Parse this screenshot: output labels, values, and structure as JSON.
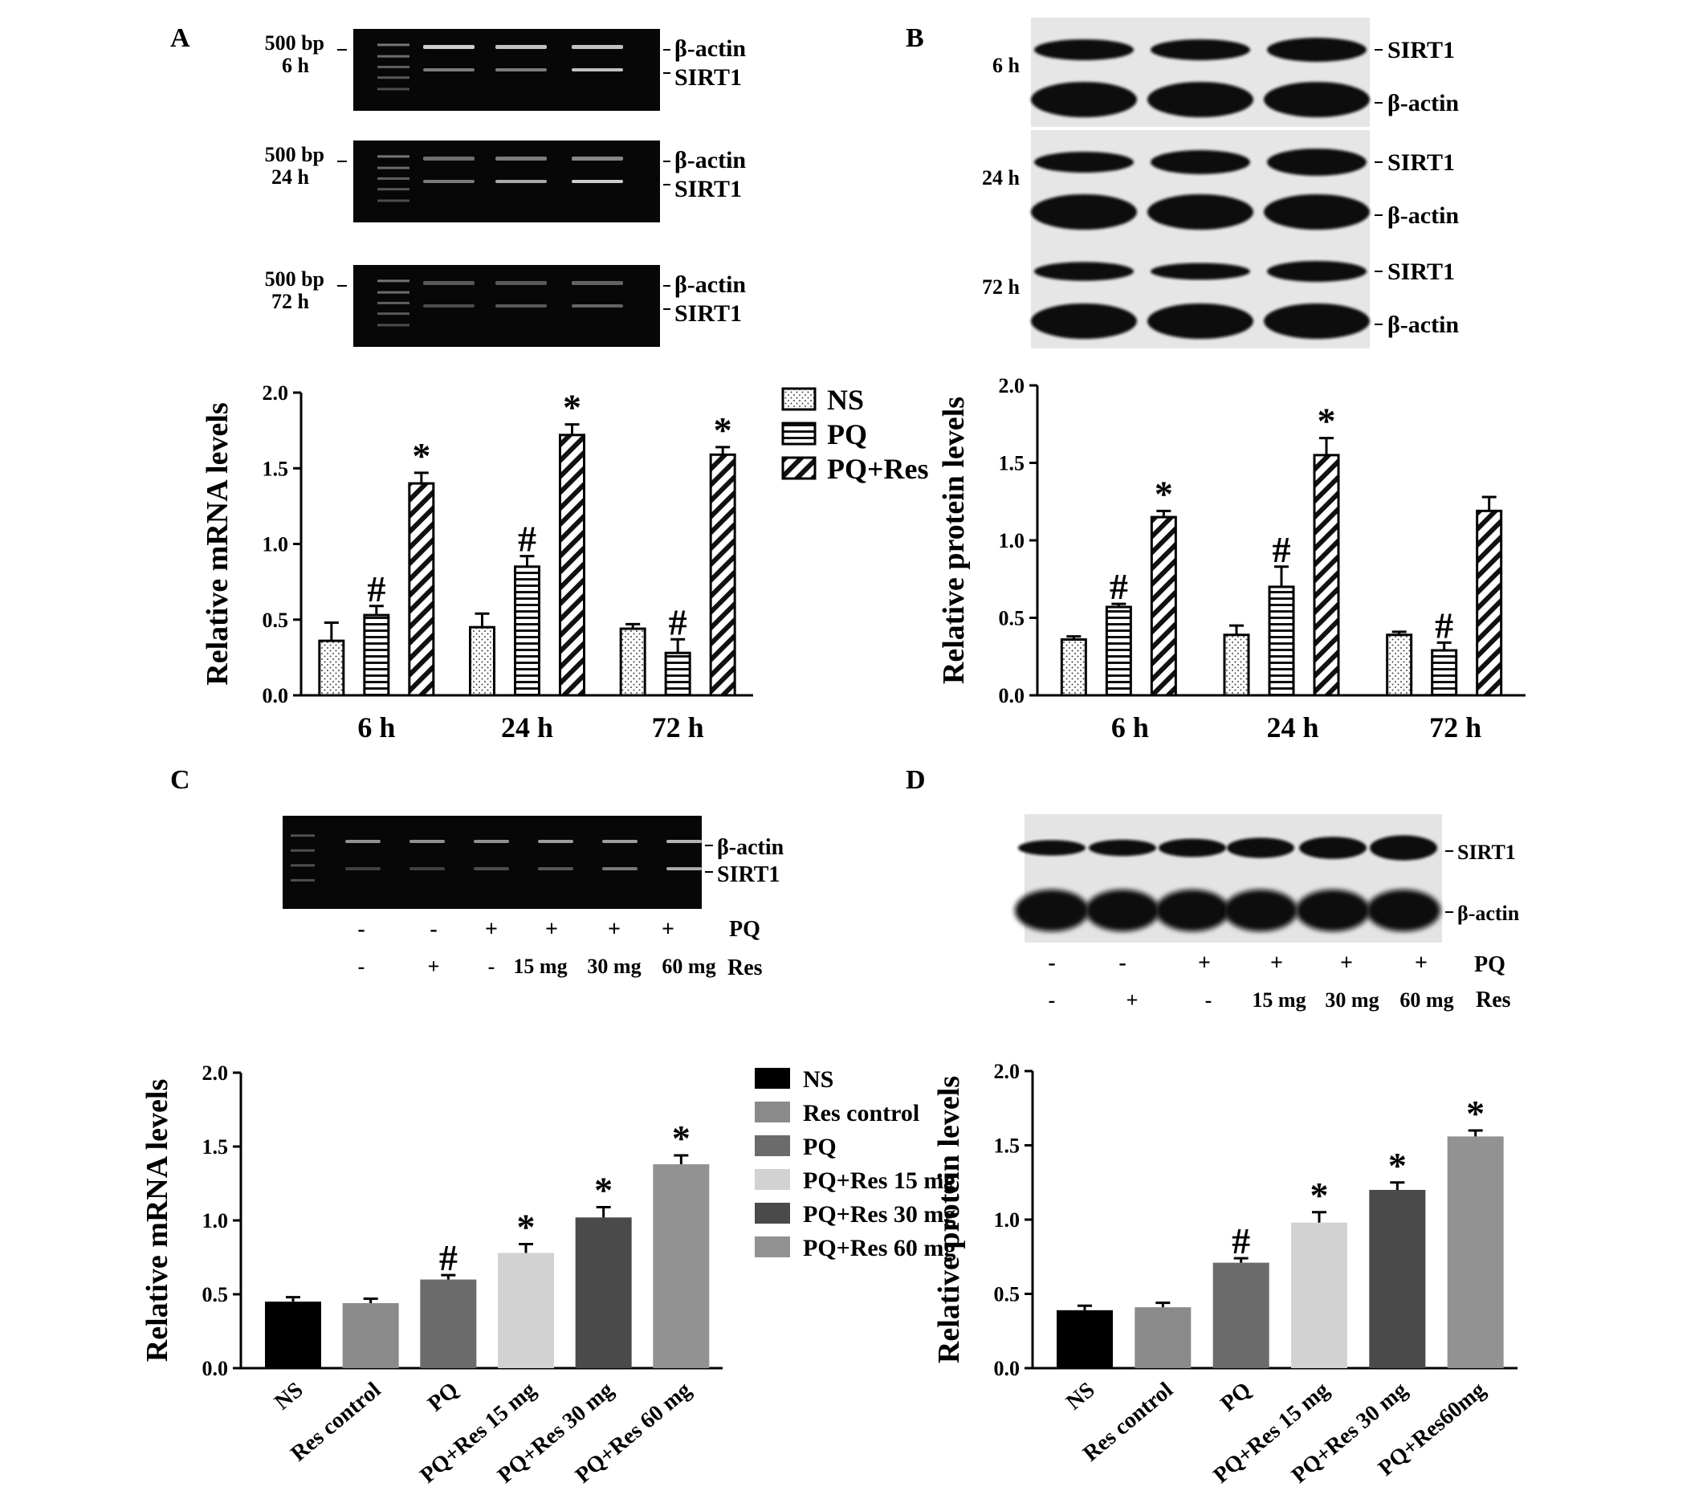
{
  "panels": {
    "A": {
      "letter": "A",
      "gels": [
        {
          "size": "500 bp",
          "time": "6 h",
          "band_top": "β-actin",
          "band_bottom": "SIRT1"
        },
        {
          "size": "500 bp",
          "time": "24 h",
          "band_top": "β-actin",
          "band_bottom": "SIRT1"
        },
        {
          "size": "500 bp",
          "time": "72 h",
          "band_top": "β-actin",
          "band_bottom": "SIRT1"
        }
      ]
    },
    "B": {
      "letter": "B",
      "blots": [
        {
          "time": "6 h",
          "band_top": "SIRT1",
          "band_bottom": "β-actin"
        },
        {
          "time": "24 h",
          "band_top": "SIRT1",
          "band_bottom": "β-actin"
        },
        {
          "time": "72 h",
          "band_top": "SIRT1",
          "band_bottom": "β-actin"
        }
      ]
    },
    "C": {
      "letter": "C",
      "band_top": "β-actin",
      "band_bottom": "SIRT1",
      "pq_label": "PQ",
      "pq_row": [
        "-",
        "-",
        "+",
        "+",
        "+",
        "+"
      ],
      "res_label": "Res",
      "res_row": [
        "-",
        "+",
        "-",
        "15 mg",
        "30 mg",
        "60 mg"
      ]
    },
    "D": {
      "letter": "D",
      "band_top": "SIRT1",
      "band_bottom": "β-actin",
      "pq_label": "PQ",
      "pq_row": [
        "-",
        "-",
        "+",
        "+",
        "+",
        "+"
      ],
      "res_label": "Res",
      "res_row": [
        "-",
        "+",
        "-",
        "15 mg",
        "30 mg",
        "60 mg"
      ]
    }
  },
  "colors": {
    "NS": "#000000",
    "Res control": "#8a8a8a",
    "PQ": "#6b6b6b",
    "PQ+Res 15 mg": "#d2d2d2",
    "PQ+Res 30 mg": "#4a4a4a",
    "PQ+Res 60 mg": "#929292"
  },
  "chart_data": [
    {
      "id": "A",
      "type": "bar",
      "ylabel": "Relative mRNA levels",
      "ylim": [
        0,
        2.0
      ],
      "yticks": [
        "0.0",
        "0.5",
        "1.0",
        "1.5",
        "2.0"
      ],
      "categories": [
        "6 h",
        "24 h",
        "72 h"
      ],
      "series": [
        {
          "name": "NS",
          "pattern": "dots",
          "values": [
            0.36,
            0.45,
            0.44
          ],
          "errors": [
            0.12,
            0.09,
            0.03
          ],
          "marks": [
            "",
            "",
            ""
          ]
        },
        {
          "name": "PQ",
          "pattern": "hlines",
          "values": [
            0.53,
            0.85,
            0.28
          ],
          "errors": [
            0.06,
            0.07,
            0.09
          ],
          "marks": [
            "#",
            "#",
            "#"
          ]
        },
        {
          "name": "PQ+Res",
          "pattern": "diag",
          "values": [
            1.4,
            1.72,
            1.59
          ],
          "errors": [
            0.07,
            0.07,
            0.05
          ],
          "marks": [
            "*",
            "*",
            "*"
          ]
        }
      ],
      "legend": "top-right"
    },
    {
      "id": "B",
      "type": "bar",
      "ylabel": "Relative protein levels",
      "ylim": [
        0,
        2.0
      ],
      "yticks": [
        "0.0",
        "0.5",
        "1.0",
        "1.5",
        "2.0"
      ],
      "categories": [
        "6 h",
        "24 h",
        "72 h"
      ],
      "series": [
        {
          "name": "NS",
          "pattern": "dots",
          "values": [
            0.36,
            0.39,
            0.39
          ],
          "errors": [
            0.02,
            0.06,
            0.02
          ],
          "marks": [
            "",
            "",
            ""
          ]
        },
        {
          "name": "PQ",
          "pattern": "hlines",
          "values": [
            0.57,
            0.7,
            0.29
          ],
          "errors": [
            0.02,
            0.13,
            0.05
          ],
          "marks": [
            "#",
            "#",
            "#"
          ]
        },
        {
          "name": "PQ+Res",
          "pattern": "diag",
          "values": [
            1.15,
            1.55,
            1.19
          ],
          "errors": [
            0.04,
            0.11,
            0.09
          ],
          "marks": [
            "*",
            "*",
            ""
          ]
        }
      ]
    },
    {
      "id": "C",
      "type": "bar",
      "ylabel": "Relative mRNA levels",
      "ylim": [
        0,
        2.0
      ],
      "yticks": [
        "0.0",
        "0.5",
        "1.0",
        "1.5",
        "2.0"
      ],
      "categories": [
        "NS",
        "Res control",
        "PQ",
        "PQ+Res 15 mg",
        "PQ+Res 30 mg",
        "PQ+Res 60 mg"
      ],
      "values": [
        0.45,
        0.44,
        0.6,
        0.78,
        1.02,
        1.38
      ],
      "errors": [
        0.03,
        0.03,
        0.03,
        0.06,
        0.07,
        0.06
      ],
      "marks": [
        "",
        "",
        "#",
        "*",
        "*",
        "*"
      ],
      "legend_entries": [
        "NS",
        "Res control",
        "PQ",
        "PQ+Res 15 mg",
        "PQ+Res 30 mg",
        "PQ+Res 60 mg"
      ],
      "legend": "top-right"
    },
    {
      "id": "D",
      "type": "bar",
      "ylabel": "Relative protein levels",
      "ylim": [
        0,
        2.0
      ],
      "yticks": [
        "0.0",
        "0.5",
        "1.0",
        "1.5",
        "2.0"
      ],
      "categories": [
        "NS",
        "Res control",
        "PQ",
        "PQ+Res 15 mg",
        "PQ+Res 30 mg",
        "PQ+Res60mg"
      ],
      "values": [
        0.39,
        0.41,
        0.71,
        0.98,
        1.2,
        1.56
      ],
      "errors": [
        0.03,
        0.03,
        0.03,
        0.07,
        0.05,
        0.04
      ],
      "marks": [
        "",
        "",
        "#",
        "*",
        "*",
        "*"
      ]
    }
  ]
}
